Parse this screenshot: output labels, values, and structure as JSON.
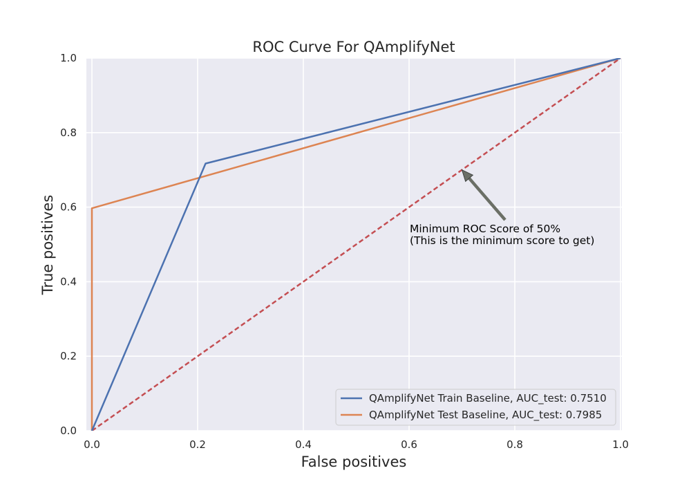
{
  "chart_data": {
    "type": "line",
    "title": "ROC Curve For QAmplifyNet",
    "xlabel": "False positives",
    "ylabel": "True positives",
    "xlim": [
      0.0,
      1.0
    ],
    "ylim": [
      0.0,
      1.0
    ],
    "xticks": [
      0.0,
      0.2,
      0.4,
      0.6,
      0.8,
      1.0
    ],
    "yticks": [
      0.0,
      0.2,
      0.4,
      0.6,
      0.8,
      1.0
    ],
    "xtick_labels": [
      "0.0",
      "0.2",
      "0.4",
      "0.6",
      "0.8",
      "1.0"
    ],
    "ytick_labels": [
      "0.0",
      "0.2",
      "0.4",
      "0.6",
      "0.8",
      "1.0"
    ],
    "grid": true,
    "legend_position": "lower-right",
    "series": [
      {
        "name": "QAmplifyNet Train Baseline, AUC_test: 0.7510",
        "color": "#4c72b0",
        "style": "solid",
        "x": [
          0.0,
          0.215,
          1.0
        ],
        "y": [
          0.0,
          0.717,
          1.0
        ]
      },
      {
        "name": "QAmplifyNet Test Baseline, AUC_test: 0.7985",
        "color": "#dd8452",
        "style": "solid",
        "x": [
          0.0,
          0.0,
          1.0
        ],
        "y": [
          0.0,
          0.597,
          1.0
        ]
      },
      {
        "name": "",
        "color": "#c44e52",
        "style": "dashed",
        "x": [
          0.0,
          1.0
        ],
        "y": [
          0.0,
          1.0
        ]
      }
    ],
    "annotation": {
      "lines": [
        "Minimum ROC Score of 50%",
        "(This is the minimum score to get)"
      ],
      "point": [
        0.7,
        0.7
      ],
      "text_anchor": [
        0.6,
        0.55
      ],
      "arrow_color": "#6b6f66"
    }
  }
}
